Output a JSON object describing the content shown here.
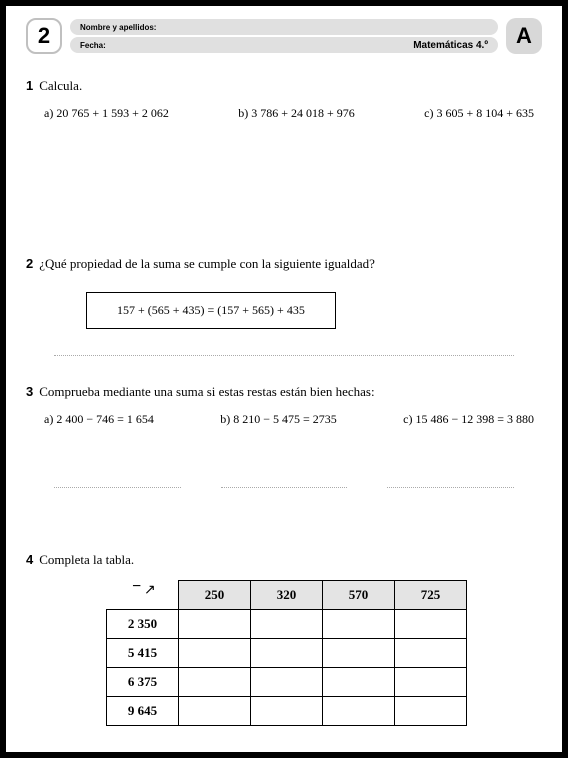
{
  "header": {
    "page_num": "2",
    "name_label": "Nombre y apellidos:",
    "date_label": "Fecha:",
    "subject": "Matemáticas 4.º",
    "letter": "A"
  },
  "ex1": {
    "num": "1",
    "title": "Calcula.",
    "a": "a) 20 765 + 1 593 + 2 062",
    "b": "b) 3 786 + 24 018 + 976",
    "c": "c) 3 605 + 8 104 + 635"
  },
  "ex2": {
    "num": "2",
    "title": "¿Qué propiedad de la suma se cumple con la siguiente igualdad?",
    "equation": "157 + (565 + 435) = (157 + 565) + 435"
  },
  "ex3": {
    "num": "3",
    "title": "Comprueba mediante una suma si estas restas están bien hechas:",
    "a": "a) 2 400 − 746 = 1 654",
    "b": "b) 8 210 − 5 475 = 2735",
    "c": "c) 15 486 − 12 398 = 3 880"
  },
  "ex4": {
    "num": "4",
    "title": "Completa la tabla.",
    "minus": "−",
    "cols": [
      "250",
      "320",
      "570",
      "725"
    ],
    "rows": [
      "2 350",
      "5 415",
      "6 375",
      "9 645"
    ]
  }
}
